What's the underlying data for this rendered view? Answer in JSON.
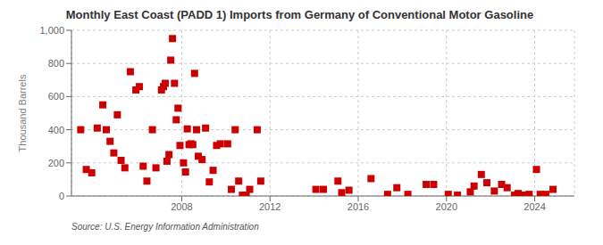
{
  "chart_data": {
    "type": "scatter",
    "title": "Monthly East Coast (PADD 1) Imports from Germany of Conventional Motor Gasoline",
    "ylabel": "Thousand Barrels",
    "annotations": [
      "Source: U.S. Energy Information Administration"
    ],
    "color": "#cc0000",
    "marker": "square",
    "grid": true,
    "xlim": [
      2003.0,
      2025.8
    ],
    "xticks": [
      2008,
      2012,
      2016,
      2020,
      2024
    ],
    "ylim": [
      0,
      1000
    ],
    "yticks": [
      0,
      200,
      400,
      600,
      800,
      {
        "value": 1000,
        "label": "1,000"
      }
    ],
    "x": [
      2003.42,
      2003.67,
      2003.92,
      2004.17,
      2004.42,
      2004.58,
      2004.75,
      2004.92,
      2005.08,
      2005.25,
      2005.42,
      2005.67,
      2005.92,
      2006.08,
      2006.25,
      2006.42,
      2006.67,
      2006.83,
      2007.08,
      2007.17,
      2007.25,
      2007.33,
      2007.42,
      2007.5,
      2007.58,
      2007.67,
      2007.75,
      2007.83,
      2007.92,
      2008.08,
      2008.17,
      2008.25,
      2008.33,
      2008.42,
      2008.5,
      2008.58,
      2008.67,
      2008.75,
      2008.92,
      2009.08,
      2009.25,
      2009.42,
      2009.58,
      2009.75,
      2010.08,
      2010.25,
      2010.42,
      2010.58,
      2010.75,
      2011.08,
      2011.42,
      2011.58,
      2010.92,
      2014.08,
      2014.42,
      2015.08,
      2015.25,
      2015.58,
      2016.58,
      2017.33,
      2017.75,
      2018.25,
      2019.08,
      2019.42,
      2020.08,
      2020.5,
      2021.08,
      2021.25,
      2021.58,
      2021.83,
      2022.17,
      2022.5,
      2022.75,
      2023.08,
      2023.25,
      2023.5,
      2023.75,
      2024.08,
      2024.25,
      2024.5,
      2024.83
    ],
    "values": [
      400,
      160,
      140,
      410,
      550,
      400,
      330,
      260,
      490,
      215,
      170,
      750,
      640,
      660,
      180,
      90,
      400,
      170,
      640,
      660,
      680,
      210,
      250,
      820,
      950,
      680,
      460,
      530,
      305,
      200,
      145,
      405,
      310,
      315,
      310,
      740,
      400,
      240,
      220,
      410,
      85,
      155,
      305,
      315,
      315,
      40,
      400,
      90,
      5,
      40,
      400,
      90,
      5,
      40,
      40,
      90,
      20,
      35,
      105,
      10,
      50,
      10,
      70,
      70,
      10,
      5,
      25,
      60,
      130,
      80,
      30,
      70,
      50,
      5,
      15,
      5,
      10,
      160,
      10,
      10,
      40
    ]
  }
}
